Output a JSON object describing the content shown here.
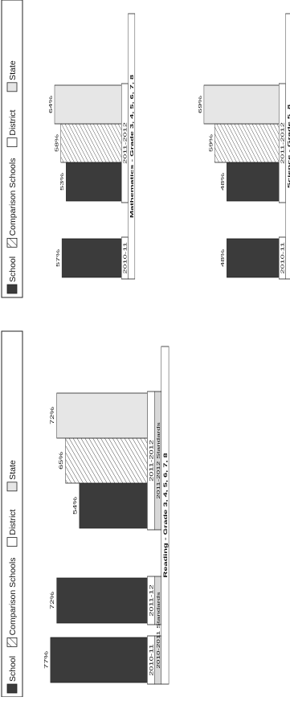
{
  "colors": {
    "school": "#3b3b3b",
    "comparison_hatch": "#333333",
    "district": "#ffffff",
    "state": "#e6e6e6",
    "frame": "#222222",
    "standards_band": "#d8d8d8"
  },
  "legend": {
    "school": "School",
    "comparison": "Comparison Schools",
    "district": "District",
    "state": "State"
  },
  "chart_data": [
    {
      "type": "bar",
      "title": "Reading - Grade 3, 4, 5, 6, 7, 8",
      "groups": [
        {
          "label": "2010-11",
          "standards": "2010-2011 Standards",
          "bars": [
            {
              "series": "School",
              "value": 77
            }
          ]
        },
        {
          "label": "2011-12",
          "standards": "2010-2011 Standards",
          "bars": [
            {
              "series": "School",
              "value": 72
            }
          ]
        },
        {
          "label": "2011-2012",
          "standards": "2011-2012 Standards",
          "bars": [
            {
              "series": "School",
              "value": 54
            },
            {
              "series": "Comparison Schools",
              "value": 65
            },
            {
              "series": "State",
              "value": 72
            }
          ]
        }
      ],
      "ylim": [
        0,
        100
      ],
      "legend_placement": "left",
      "orientation": "rotated 90° counter-clockwise"
    },
    {
      "type": "bar",
      "title": "Mathematics - Grade 3, 4, 5, 6, 7, 8",
      "groups": [
        {
          "label": "2010-11",
          "bars": [
            {
              "series": "School",
              "value": 57
            }
          ]
        },
        {
          "label": "2011-2012",
          "bars": [
            {
              "series": "School",
              "value": 53
            },
            {
              "series": "Comparison Schools",
              "value": 58
            },
            {
              "series": "State",
              "value": 64
            }
          ]
        }
      ],
      "ylim": [
        0,
        100
      ],
      "legend_placement": "left",
      "orientation": "rotated 90° counter-clockwise"
    },
    {
      "type": "bar",
      "title": "Science - Grade 5, 8",
      "groups": [
        {
          "label": "2010-11",
          "bars": [
            {
              "series": "School",
              "value": 48
            }
          ]
        },
        {
          "label": "2011-2012",
          "bars": [
            {
              "series": "School",
              "value": 48
            },
            {
              "series": "Comparison Schools",
              "value": 59
            },
            {
              "series": "State",
              "value": 69
            }
          ]
        }
      ],
      "ylim": [
        0,
        100
      ],
      "legend_placement": "left",
      "orientation": "rotated 90° counter-clockwise"
    }
  ]
}
